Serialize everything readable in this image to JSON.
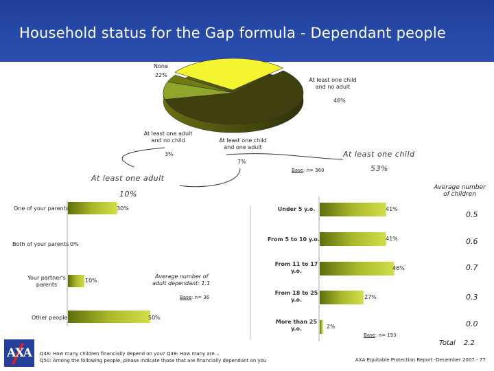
{
  "title": "Household status for the Gap formula - Dependant people",
  "pie": {
    "slices": [
      {
        "label": "None",
        "value_label": "22%"
      },
      {
        "label": "At least one child and no adult",
        "value_label": "46%"
      },
      {
        "label": "At least one child and one adult",
        "value_label": "7%"
      },
      {
        "label": "At least one adult and no child",
        "value_label": "3%"
      }
    ],
    "group_child_label": "At least one child",
    "group_child_value": "53%",
    "group_adult_label": "At least one adult",
    "group_adult_value": "10%",
    "base_prefix": "Base",
    "base_suffix": ": n= 360"
  },
  "left_bars": {
    "items": [
      {
        "label": "One of your parents",
        "value_label": "30%"
      },
      {
        "label": "Both of your parents",
        "value_label": "0%"
      },
      {
        "label_line1": "Your partner's",
        "label_line2": "parents",
        "value_label": "10%"
      },
      {
        "label": "Other people",
        "value_label": "50%"
      }
    ],
    "note_line1": "Average number of",
    "note_line2": "adult dependant: 1.1",
    "base_prefix": "Base",
    "base_suffix": ": n= 36"
  },
  "right_bars": {
    "items": [
      {
        "line1": "Under 5 y.o.",
        "line2": "",
        "value_label": "41%",
        "avg": "0.5"
      },
      {
        "line1": "From 5 to 10 y.o.",
        "line2": "",
        "value_label": "41%",
        "avg": "0.6"
      },
      {
        "line1": "From 11 to 17",
        "line2": "y.o.",
        "value_label": "46%",
        "avg": "0.7"
      },
      {
        "line1": "From 18 to 25",
        "line2": "y.o.",
        "value_label": "27%",
        "avg": "0.3"
      },
      {
        "line1": "More than 25",
        "line2": "y.o.",
        "value_label": "2%",
        "avg": "0.0"
      }
    ],
    "avg_header_line1": "Average number",
    "avg_header_line2": "of children",
    "total_label": "Total",
    "total_value": "2.2",
    "base_prefix": "Base",
    "base_suffix": ": n= 193"
  },
  "footer": {
    "q_line1": "Q48: How many children financially depend on you? Q49: How many are…",
    "q_line2": "Q50: Among the following people, please indicate those that are financially dependant on you",
    "report": "AXA Equitable Protection Report -December  2007 - 77"
  },
  "logo_text": "AXA",
  "colors": {
    "header": "#284aa8",
    "bar_dark": "#6b7a10",
    "bar_light": "#c8d63a",
    "pie_yellow": "#f4f430",
    "pie_dark": "#40400e"
  },
  "chart_data": [
    {
      "type": "pie",
      "categories": [
        "None",
        "At least one child and no adult",
        "At least one child and one adult",
        "At least one adult and no child"
      ],
      "values": [
        22,
        46,
        7,
        3
      ]
    },
    {
      "type": "bar",
      "categories": [
        "One of your parents",
        "Both of your parents",
        "Your partner's parents",
        "Other people"
      ],
      "values": [
        30,
        0,
        10,
        50
      ]
    },
    {
      "type": "bar",
      "categories": [
        "Under 5 y.o.",
        "From 5 to 10 y.o.",
        "From 11 to 17 y.o.",
        "From 18 to 25 y.o.",
        "More than 25 y.o."
      ],
      "values": [
        41,
        41,
        46,
        27,
        2
      ],
      "avg": [
        0.5,
        0.6,
        0.7,
        0.3,
        0.0
      ]
    }
  ]
}
